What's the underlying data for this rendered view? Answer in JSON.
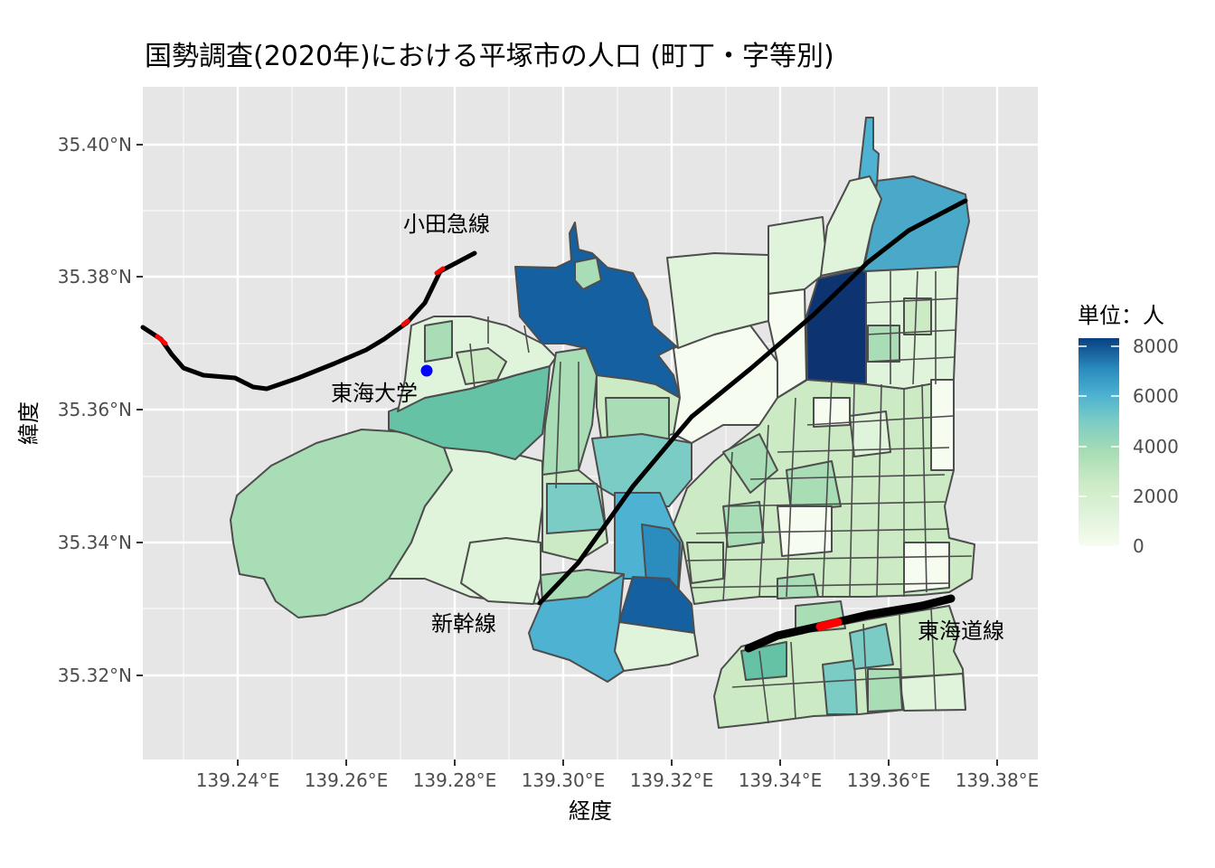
{
  "title": "国勢調査(2020年)における平塚市の人口 (町丁・字等別)",
  "x_axis": {
    "label": "経度",
    "ticks": [
      "139.24°E",
      "139.26°E",
      "139.28°E",
      "139.30°E",
      "139.32°E",
      "139.34°E",
      "139.36°E",
      "139.38°E"
    ]
  },
  "y_axis": {
    "label": "緯度",
    "ticks": [
      "35.32°N",
      "35.34°N",
      "35.36°N",
      "35.38°N",
      "35.40°N"
    ]
  },
  "legend": {
    "title": "単位：人",
    "ticks": [
      "8000",
      "6000",
      "4000",
      "2000",
      "0"
    ],
    "color_low": "#f7fcf0",
    "color_high": "#084081"
  },
  "annotations": {
    "odakyu": "小田急線",
    "tokai_univ": "東海大学",
    "shinkansen": "新幹線",
    "tokaido": "東海道線"
  },
  "colors": {
    "panel_bg": "#e6e6e6",
    "grid": "#ffffff",
    "border": "#4d4d4d",
    "rail": "#000000",
    "station": "#ff0000",
    "university": "#0000ff"
  }
}
